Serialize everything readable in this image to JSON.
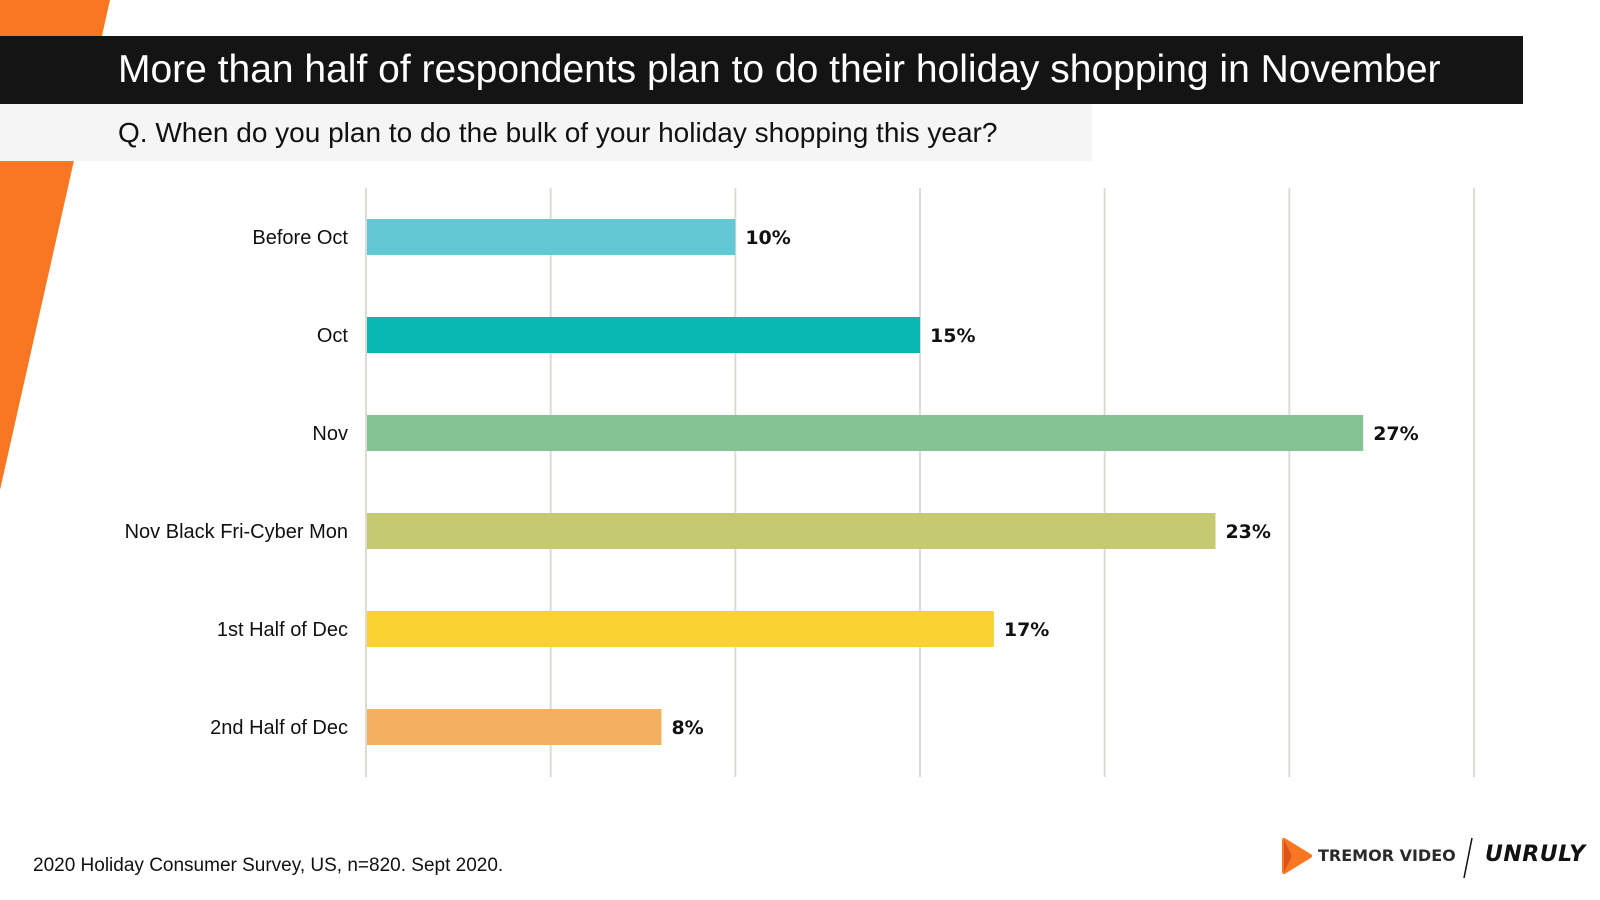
{
  "header": {
    "title": "More than half of respondents plan to do their holiday shopping in November",
    "question": "Q. When do you plan to do the bulk of your holiday shopping this year?"
  },
  "chart_data": {
    "type": "bar",
    "orientation": "horizontal",
    "title": "More than half of respondents plan to do their holiday shopping in November",
    "categories": [
      "Before Oct",
      "Oct",
      "Nov",
      "Nov Black Fri-Cyber Mon",
      "1st Half of Dec",
      "2nd Half of Dec"
    ],
    "values": [
      10,
      15,
      27,
      23,
      17,
      8
    ],
    "value_labels": [
      "10%",
      "15%",
      "27%",
      "23%",
      "17%",
      "8%"
    ],
    "colors": [
      "#63c7d4",
      "#0ab8b3",
      "#86c394",
      "#c4c972",
      "#f9d232",
      "#f3b060"
    ],
    "xlim": [
      0,
      30
    ],
    "grid_step": 5,
    "grid": true,
    "xlabel": "",
    "ylabel": "",
    "legend": "none"
  },
  "footer": {
    "source": "2020 Holiday Consumer Survey, US, n=820. Sept 2020."
  },
  "logos": {
    "tremor": "TREMOR VIDEO",
    "unruly": "UNRULY"
  },
  "colors": {
    "accent_orange": "#f97723",
    "title_bar": "#141414",
    "question_bar": "#f5f5f5",
    "gridline": "#dcdcd4"
  }
}
